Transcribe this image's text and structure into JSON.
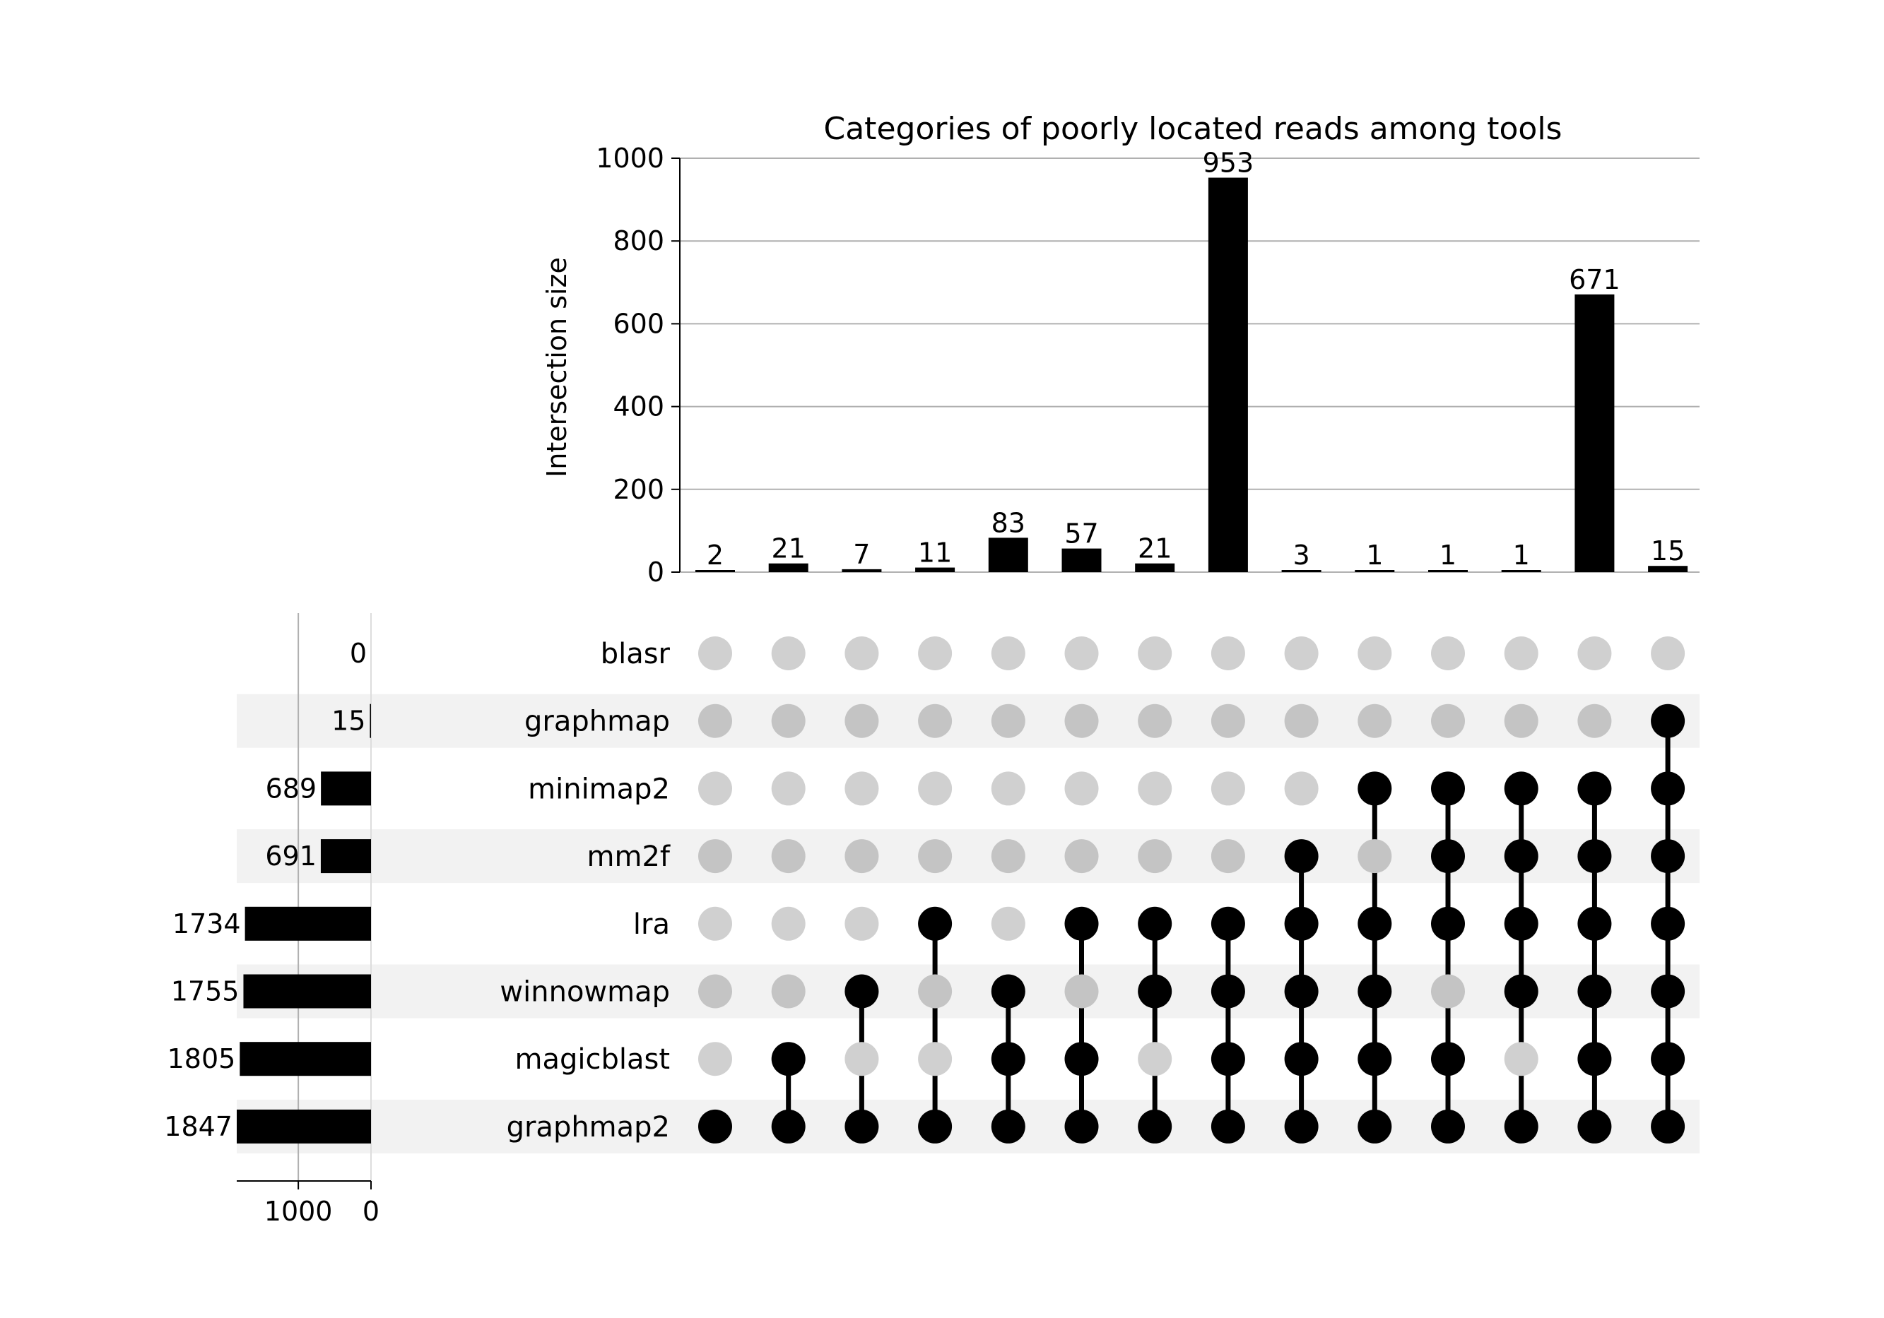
{
  "chart_data": {
    "type": "upset",
    "title": "Categories of poorly located reads among tools",
    "ylabel": "Intersection size",
    "ylim": [
      0,
      1000
    ],
    "yticks": [
      0,
      200,
      400,
      600,
      800,
      1000
    ],
    "grid": true,
    "sets": [
      {
        "name": "blasr",
        "size": 0
      },
      {
        "name": "graphmap",
        "size": 15
      },
      {
        "name": "minimap2",
        "size": 689
      },
      {
        "name": "mm2f",
        "size": 691
      },
      {
        "name": "lra",
        "size": 1734
      },
      {
        "name": "winnowmap",
        "size": 1755
      },
      {
        "name": "magicblast",
        "size": 1805
      },
      {
        "name": "graphmap2",
        "size": 1847
      }
    ],
    "set_size_ticks": [
      1000,
      0
    ],
    "set_size_xlim": [
      1847,
      0
    ],
    "intersections": [
      {
        "members": [
          "graphmap2"
        ],
        "size": 2
      },
      {
        "members": [
          "magicblast",
          "graphmap2"
        ],
        "size": 21
      },
      {
        "members": [
          "winnowmap",
          "graphmap2"
        ],
        "size": 7
      },
      {
        "members": [
          "lra",
          "graphmap2"
        ],
        "size": 11
      },
      {
        "members": [
          "winnowmap",
          "magicblast",
          "graphmap2"
        ],
        "size": 83
      },
      {
        "members": [
          "lra",
          "magicblast",
          "graphmap2"
        ],
        "size": 57
      },
      {
        "members": [
          "lra",
          "winnowmap",
          "graphmap2"
        ],
        "size": 21
      },
      {
        "members": [
          "lra",
          "winnowmap",
          "magicblast",
          "graphmap2"
        ],
        "size": 953
      },
      {
        "members": [
          "mm2f",
          "lra",
          "winnowmap",
          "magicblast",
          "graphmap2"
        ],
        "size": 3
      },
      {
        "members": [
          "minimap2",
          "lra",
          "winnowmap",
          "magicblast",
          "graphmap2"
        ],
        "size": 1
      },
      {
        "members": [
          "minimap2",
          "mm2f",
          "lra",
          "magicblast",
          "graphmap2"
        ],
        "size": 1
      },
      {
        "members": [
          "minimap2",
          "mm2f",
          "lra",
          "winnowmap",
          "graphmap2"
        ],
        "size": 1
      },
      {
        "members": [
          "minimap2",
          "mm2f",
          "lra",
          "winnowmap",
          "magicblast",
          "graphmap2"
        ],
        "size": 671
      },
      {
        "members": [
          "graphmap",
          "minimap2",
          "mm2f",
          "lra",
          "winnowmap",
          "magicblast",
          "graphmap2"
        ],
        "size": 15
      }
    ]
  },
  "colors": {
    "bar": "#000000",
    "dot_active": "#000000",
    "dot_inactive_light": "#d0d0d0",
    "dot_inactive_dark": "#c4c4c4",
    "stripe": "#f2f2f2",
    "grid": "#b0b0b0"
  }
}
